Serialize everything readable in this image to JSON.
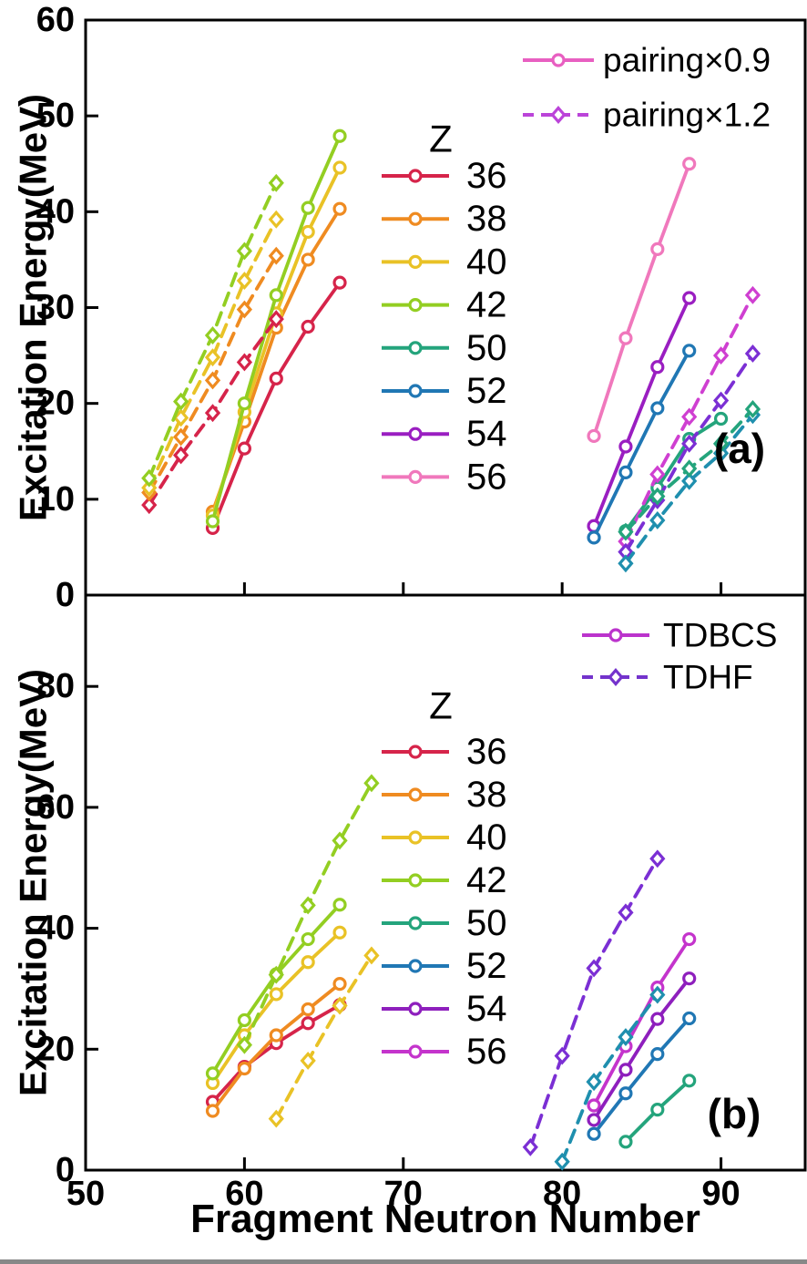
{
  "chart_data": {
    "type": "line",
    "xlabel": "Fragment Neutron Number",
    "xlim": [
      50,
      95.3
    ],
    "xticks": [
      {
        "value": 50,
        "label": "50"
      },
      {
        "value": 60,
        "label": "60"
      },
      {
        "value": 70,
        "label": "70"
      },
      {
        "value": 80,
        "label": "80"
      },
      {
        "value": 90,
        "label": "90"
      }
    ],
    "panels": [
      {
        "id": "a",
        "tag": "(a)",
        "ylabel": "Excitation Energy(MeV)",
        "ylim": [
          0,
          60
        ],
        "yticks": [
          {
            "value": 0,
            "label": "0"
          },
          {
            "value": 10,
            "label": "10"
          },
          {
            "value": 20,
            "label": "20"
          },
          {
            "value": 30,
            "label": "30"
          },
          {
            "value": 40,
            "label": "40"
          },
          {
            "value": 50,
            "label": "50"
          },
          {
            "value": 60,
            "label": "60"
          }
        ],
        "legend": [
          {
            "label": "pairing×0.9",
            "style": "solid",
            "marker": "circle",
            "color": "#e85fc1"
          },
          {
            "label": "pairing×1.2",
            "style": "dashed",
            "marker": "diamond",
            "color": "#bb44d9"
          }
        ],
        "z_legend": {
          "title": "Z",
          "entries": [
            {
              "z": "36",
              "color": "#d6244a"
            },
            {
              "z": "38",
              "color": "#ef8b21"
            },
            {
              "z": "40",
              "color": "#e9c226"
            },
            {
              "z": "42",
              "color": "#93ce22"
            },
            {
              "z": "50",
              "color": "#24a47c"
            },
            {
              "z": "52",
              "color": "#2077b4"
            },
            {
              "z": "54",
              "color": "#9a1ec1"
            },
            {
              "z": "56",
              "color": "#f078bc"
            }
          ]
        },
        "series": [
          {
            "z": "36",
            "style": "solid",
            "marker": "circle",
            "color": "#d6244a",
            "x": [
              58,
              60,
              62,
              64,
              66
            ],
            "y": [
              7.0,
              15.3,
              22.6,
              28.0,
              32.6
            ]
          },
          {
            "z": "38",
            "style": "solid",
            "marker": "circle",
            "color": "#ef8b21",
            "x": [
              58,
              60,
              62,
              64,
              66
            ],
            "y": [
              8.7,
              18.1,
              27.9,
              35.0,
              40.3
            ]
          },
          {
            "z": "40",
            "style": "solid",
            "marker": "circle",
            "color": "#e9c226",
            "x": [
              58,
              60,
              62,
              64,
              66
            ],
            "y": [
              8.3,
              19.1,
              29.4,
              37.9,
              44.6
            ]
          },
          {
            "z": "42",
            "style": "solid",
            "marker": "circle",
            "color": "#93ce22",
            "x": [
              58,
              60,
              62,
              64,
              66
            ],
            "y": [
              7.7,
              20.0,
              31.3,
              40.4,
              47.9
            ]
          },
          {
            "z": "36",
            "style": "dashed",
            "marker": "diamond",
            "color": "#d6244a",
            "x": [
              54,
              56,
              58,
              60,
              62
            ],
            "y": [
              9.4,
              14.6,
              19.0,
              24.3,
              28.8
            ]
          },
          {
            "z": "38",
            "style": "dashed",
            "marker": "diamond",
            "color": "#ef8b21",
            "x": [
              54,
              56,
              58,
              60,
              62
            ],
            "y": [
              10.7,
              16.5,
              22.4,
              29.8,
              35.4
            ]
          },
          {
            "z": "40",
            "style": "dashed",
            "marker": "diamond",
            "color": "#e9c226",
            "x": [
              54,
              56,
              58,
              60,
              62
            ],
            "y": [
              11.2,
              18.5,
              24.8,
              32.8,
              39.2
            ]
          },
          {
            "z": "42",
            "style": "dashed",
            "marker": "diamond",
            "color": "#93ce22",
            "x": [
              54,
              56,
              58,
              60,
              62
            ],
            "y": [
              12.2,
              20.2,
              27.1,
              35.9,
              43.0
            ]
          },
          {
            "z": "56",
            "style": "solid",
            "marker": "circle",
            "color": "#f078bc",
            "x": [
              82,
              84,
              86,
              88
            ],
            "y": [
              16.6,
              26.8,
              36.1,
              45.0
            ]
          },
          {
            "z": "54",
            "style": "solid",
            "marker": "circle",
            "color": "#9a1ec1",
            "x": [
              82,
              84,
              86,
              88
            ],
            "y": [
              7.2,
              15.5,
              23.8,
              31.0
            ]
          },
          {
            "z": "52",
            "style": "solid",
            "marker": "circle",
            "color": "#2077b4",
            "x": [
              82,
              84,
              86,
              88
            ],
            "y": [
              6.0,
              12.8,
              19.5,
              25.5
            ]
          },
          {
            "z": "50",
            "style": "solid",
            "marker": "circle",
            "color": "#24a47c",
            "x": [
              84,
              86,
              88,
              90
            ],
            "y": [
              6.7,
              11.2,
              16.3,
              18.4
            ]
          },
          {
            "z": "56",
            "style": "dashed",
            "marker": "diamond",
            "color": "#cf3fd1",
            "x": [
              84,
              86,
              88,
              90,
              92
            ],
            "y": [
              5.6,
              12.6,
              18.6,
              25.0,
              31.3
            ]
          },
          {
            "z": "54",
            "style": "dashed",
            "marker": "diamond",
            "color": "#7b2fd4",
            "x": [
              84,
              86,
              88,
              90,
              92
            ],
            "y": [
              4.5,
              9.9,
              15.8,
              20.3,
              25.2
            ]
          },
          {
            "z": "52",
            "style": "dashed",
            "marker": "diamond",
            "color": "#1f8fae",
            "x": [
              84,
              86,
              88,
              90,
              92
            ],
            "y": [
              3.3,
              7.8,
              11.9,
              14.8,
              18.8
            ]
          },
          {
            "z": "50",
            "style": "dashed",
            "marker": "diamond",
            "color": "#24a47c",
            "x": [
              84,
              86,
              88,
              90,
              92
            ],
            "y": [
              6.6,
              10.3,
              13.2,
              15.8,
              19.4
            ]
          }
        ]
      },
      {
        "id": "b",
        "tag": "(b)",
        "ylabel": "Excitation Energy(MeV)",
        "ylim": [
          0,
          95.1
        ],
        "yticks": [
          {
            "value": 0,
            "label": "0"
          },
          {
            "value": 20,
            "label": "20"
          },
          {
            "value": 40,
            "label": "40"
          },
          {
            "value": 60,
            "label": "60"
          },
          {
            "value": 80,
            "label": "80"
          }
        ],
        "legend": [
          {
            "label": "TDBCS",
            "style": "solid",
            "marker": "circle",
            "color": "#bb33cc"
          },
          {
            "label": "TDHF",
            "style": "dashed",
            "marker": "diamond",
            "color": "#7433cc"
          }
        ],
        "z_legend": {
          "title": "Z",
          "entries": [
            {
              "z": "36",
              "color": "#d6244a"
            },
            {
              "z": "38",
              "color": "#ef8b21"
            },
            {
              "z": "40",
              "color": "#e9c226"
            },
            {
              "z": "42",
              "color": "#93ce22"
            },
            {
              "z": "50",
              "color": "#24a47c"
            },
            {
              "z": "52",
              "color": "#2077b4"
            },
            {
              "z": "54",
              "color": "#8e1fbd"
            },
            {
              "z": "56",
              "color": "#c434cc"
            }
          ]
        },
        "series": [
          {
            "z": "36",
            "style": "solid",
            "marker": "circle",
            "color": "#d6244a",
            "x": [
              58,
              60,
              62,
              64,
              66
            ],
            "y": [
              11.3,
              17.1,
              21.0,
              24.3,
              27.3
            ]
          },
          {
            "z": "38",
            "style": "solid",
            "marker": "circle",
            "color": "#ef8b21",
            "x": [
              58,
              60,
              62,
              64,
              66
            ],
            "y": [
              9.8,
              16.8,
              22.3,
              26.6,
              30.8
            ]
          },
          {
            "z": "40",
            "style": "solid",
            "marker": "circle",
            "color": "#e9c226",
            "x": [
              58,
              60,
              62,
              64,
              66
            ],
            "y": [
              14.4,
              22.3,
              29.1,
              34.4,
              39.3
            ]
          },
          {
            "z": "42",
            "style": "solid",
            "marker": "circle",
            "color": "#93ce22",
            "x": [
              58,
              60,
              62,
              64,
              66
            ],
            "y": [
              16.0,
              24.8,
              32.4,
              38.2,
              43.9
            ]
          },
          {
            "z": "40",
            "style": "dashed",
            "marker": "diamond",
            "color": "#e9c226",
            "x": [
              62,
              64,
              66,
              68
            ],
            "y": [
              8.5,
              18.1,
              27.2,
              35.5
            ]
          },
          {
            "z": "42",
            "style": "dashed",
            "marker": "diamond",
            "color": "#93ce22",
            "x": [
              60,
              62,
              64,
              66,
              68
            ],
            "y": [
              20.7,
              32.3,
              43.8,
              54.5,
              64.0
            ]
          },
          {
            "z": "56",
            "style": "solid",
            "marker": "circle",
            "color": "#c434cc",
            "x": [
              82,
              84,
              86,
              88
            ],
            "y": [
              10.7,
              20.5,
              30.2,
              38.2
            ]
          },
          {
            "z": "54",
            "style": "solid",
            "marker": "circle",
            "color": "#8e1fbd",
            "x": [
              82,
              84,
              86,
              88
            ],
            "y": [
              8.3,
              16.6,
              25.0,
              31.7
            ]
          },
          {
            "z": "52",
            "style": "solid",
            "marker": "circle",
            "color": "#2077b4",
            "x": [
              82,
              84,
              86,
              88
            ],
            "y": [
              6.0,
              12.7,
              19.2,
              25.1
            ]
          },
          {
            "z": "50",
            "style": "solid",
            "marker": "circle",
            "color": "#24a47c",
            "x": [
              84,
              86,
              88
            ],
            "y": [
              4.7,
              10.0,
              14.8
            ]
          },
          {
            "z": "54",
            "style": "dashed",
            "marker": "diamond",
            "color": "#7b2fd4",
            "x": [
              78,
              80,
              82,
              84,
              86
            ],
            "y": [
              3.8,
              18.9,
              33.4,
              42.6,
              51.5
            ]
          },
          {
            "z": "52",
            "style": "dashed",
            "marker": "diamond",
            "color": "#1f8fae",
            "x": [
              80,
              82,
              84,
              86
            ],
            "y": [
              1.4,
              14.6,
              22.0,
              29.0
            ]
          }
        ]
      }
    ]
  }
}
